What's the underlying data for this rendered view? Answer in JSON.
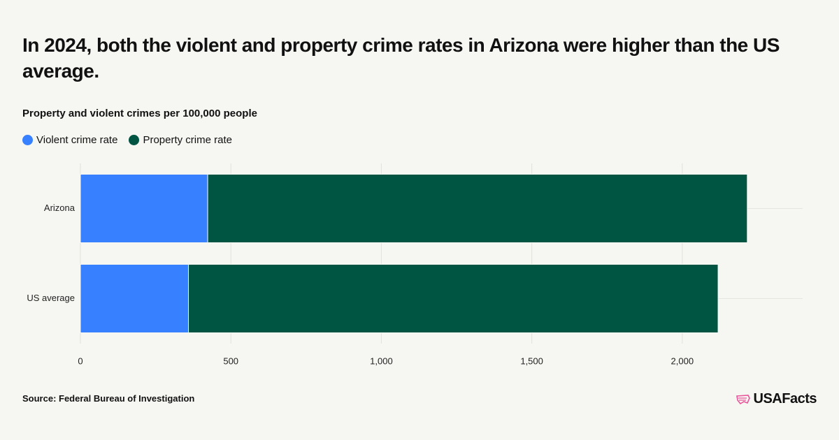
{
  "chart_data": {
    "type": "stacked-bar-horizontal",
    "title": "In 2024, both the violent and property crime rates in Arizona were higher than the US average.",
    "subtitle": "Property and violent crimes per 100,000 people",
    "categories": [
      "Arizona",
      "US average"
    ],
    "series": [
      {
        "name": "Violent crime rate",
        "color": "#3780ff",
        "values": [
          423,
          359
        ]
      },
      {
        "name": "Property crime rate",
        "color": "#005442",
        "values": [
          1793,
          1760
        ]
      }
    ],
    "xlim": [
      0,
      2400
    ],
    "xticks": [
      0,
      500,
      {
        "value": 1000,
        "label": "1,000"
      },
      {
        "value": 1500,
        "label": "1,500"
      },
      {
        "value": 2000,
        "label": "2,000"
      }
    ],
    "grid": true,
    "legend": "top",
    "source": "Source: Federal Bureau of Investigation",
    "logo": "USAFacts"
  }
}
